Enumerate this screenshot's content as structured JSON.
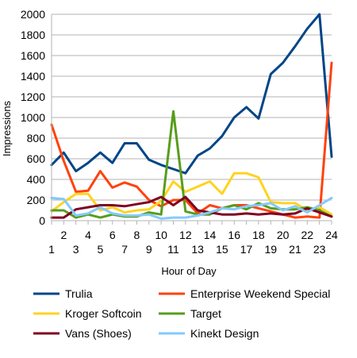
{
  "chart_data": {
    "type": "line",
    "title": "",
    "xlabel": "Hour of Day",
    "ylabel": "Impressions",
    "ylim": [
      0,
      2000
    ],
    "yticks": [
      0,
      200,
      400,
      600,
      800,
      1000,
      1200,
      1400,
      1600,
      1800,
      2000
    ],
    "x": [
      1,
      2,
      3,
      4,
      5,
      6,
      7,
      8,
      9,
      10,
      11,
      12,
      13,
      14,
      15,
      16,
      17,
      18,
      19,
      20,
      21,
      22,
      23,
      24
    ],
    "xtick_labels": [
      "1",
      "2",
      "3",
      "4",
      "5",
      "6",
      "7",
      "8",
      "9",
      "10",
      "11",
      "12",
      "13",
      "14",
      "15",
      "16",
      "17",
      "18",
      "19",
      "20",
      "21",
      "22",
      "23",
      "24"
    ],
    "grid": "horizontal",
    "legend_position": "bottom",
    "series": [
      {
        "name": "Trulia",
        "color": "#004586",
        "values": [
          540,
          660,
          480,
          560,
          660,
          560,
          750,
          750,
          590,
          540,
          500,
          460,
          630,
          700,
          820,
          1000,
          1100,
          990,
          1420,
          1530,
          1690,
          1860,
          2000,
          620
        ]
      },
      {
        "name": "Enterprise Weekend Special",
        "color": "#ff420e",
        "values": [
          930,
          580,
          280,
          290,
          480,
          320,
          370,
          330,
          200,
          140,
          200,
          200,
          70,
          150,
          120,
          150,
          150,
          120,
          90,
          60,
          30,
          40,
          30,
          1530
        ]
      },
      {
        "name": "Kroger Softcoin",
        "color": "#ffd320",
        "values": [
          90,
          180,
          260,
          260,
          100,
          130,
          80,
          100,
          110,
          190,
          380,
          280,
          330,
          380,
          260,
          460,
          460,
          420,
          180,
          170,
          170,
          100,
          130,
          60
        ]
      },
      {
        "name": "Target",
        "color": "#579d1c",
        "values": [
          100,
          100,
          30,
          60,
          30,
          60,
          40,
          40,
          80,
          60,
          1060,
          90,
          60,
          60,
          120,
          150,
          110,
          170,
          120,
          110,
          110,
          130,
          100,
          40
        ]
      },
      {
        "name": "Vans (Shoes)",
        "color": "#7e0021",
        "values": [
          30,
          30,
          110,
          130,
          150,
          150,
          140,
          160,
          180,
          230,
          150,
          230,
          100,
          80,
          60,
          60,
          70,
          60,
          70,
          60,
          70,
          120,
          80,
          40
        ]
      },
      {
        "name": "Kinekt Design",
        "color": "#83caff",
        "values": [
          220,
          210,
          50,
          70,
          130,
          70,
          50,
          50,
          60,
          20,
          30,
          30,
          50,
          80,
          120,
          110,
          140,
          150,
          170,
          100,
          140,
          80,
          150,
          220
        ]
      }
    ]
  }
}
